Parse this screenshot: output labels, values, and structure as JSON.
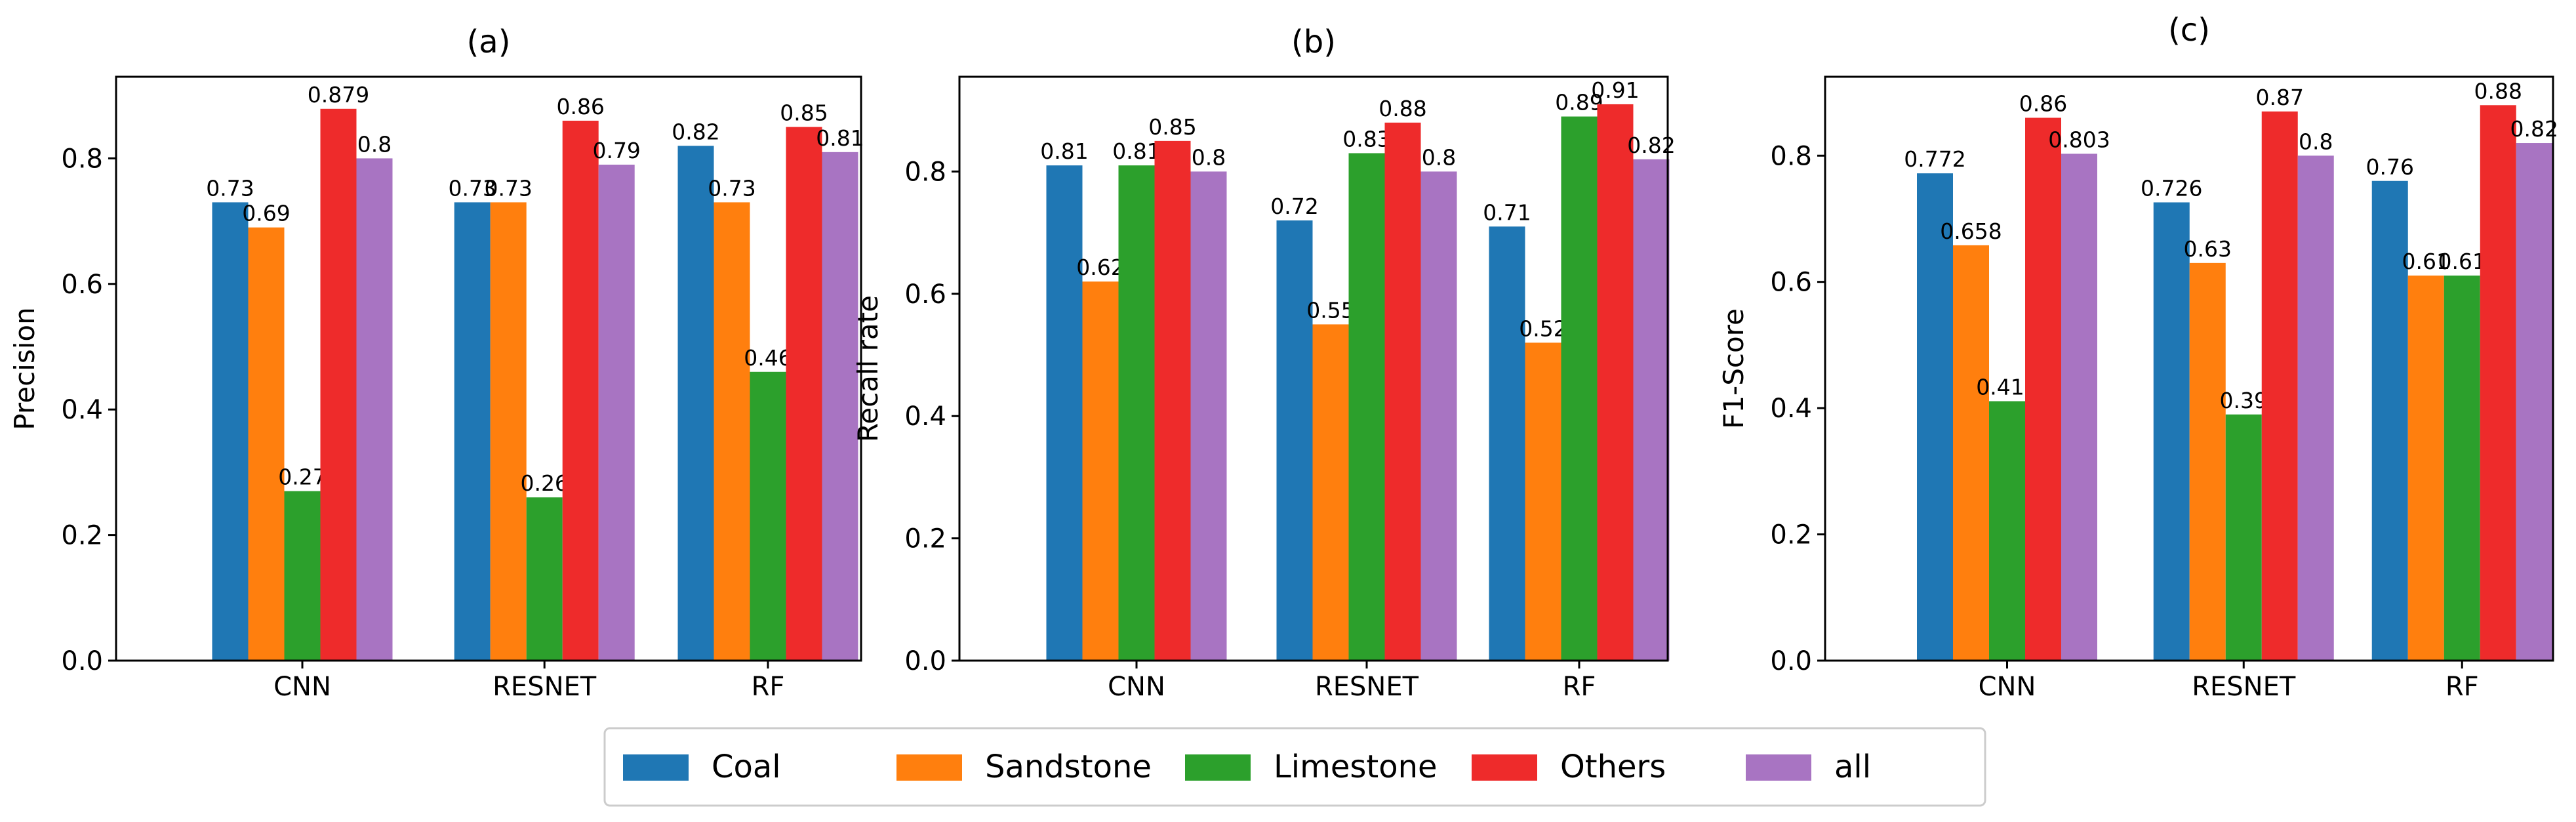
{
  "legend": {
    "entries": [
      {
        "label": "Coal",
        "color": "#1f77b4"
      },
      {
        "label": "Sandstone",
        "color": "#ff7f0e"
      },
      {
        "label": "Limestone",
        "color": "#2ca02c"
      },
      {
        "label": "Others",
        "color": "#ee2b2b"
      },
      {
        "label": "all",
        "color": "#a874c2"
      }
    ]
  },
  "chart_data": [
    {
      "type": "bar",
      "title": "(a)",
      "xlabel": "",
      "ylabel": "Precision",
      "ylim": [
        0,
        0.93
      ],
      "yticks": [
        "0.0",
        "0.2",
        "0.4",
        "0.6",
        "0.8"
      ],
      "categories": [
        "CNN",
        "RESNET",
        "RF"
      ],
      "series": [
        {
          "name": "Coal",
          "values": [
            0.73,
            0.73,
            0.82
          ],
          "labels": [
            "0.73",
            "0.73",
            "0.82"
          ]
        },
        {
          "name": "Sandstone",
          "values": [
            0.69,
            0.73,
            0.73
          ],
          "labels": [
            "0.69",
            "0.73",
            "0.73"
          ]
        },
        {
          "name": "Limestone",
          "values": [
            0.27,
            0.26,
            0.46
          ],
          "labels": [
            "0.27",
            "0.26",
            "0.46"
          ]
        },
        {
          "name": "Others",
          "values": [
            0.879,
            0.86,
            0.85
          ],
          "labels": [
            "0.879",
            "0.86",
            "0.85"
          ]
        },
        {
          "name": "all",
          "values": [
            0.8,
            0.79,
            0.81
          ],
          "labels": [
            "0.8",
            "0.79",
            "0.81"
          ]
        }
      ]
    },
    {
      "type": "bar",
      "title": "(b)",
      "xlabel": "",
      "ylabel": "Recall rate",
      "ylim": [
        0,
        0.955
      ],
      "yticks": [
        "0.0",
        "0.2",
        "0.4",
        "0.6",
        "0.8"
      ],
      "categories": [
        "CNN",
        "RESNET",
        "RF"
      ],
      "series": [
        {
          "name": "Coal",
          "values": [
            0.81,
            0.72,
            0.71
          ],
          "labels": [
            "0.81",
            "0.72",
            "0.71"
          ]
        },
        {
          "name": "Sandstone",
          "values": [
            0.62,
            0.55,
            0.52
          ],
          "labels": [
            "0.62",
            "0.55",
            "0.52"
          ]
        },
        {
          "name": "Limestone",
          "values": [
            0.81,
            0.83,
            0.89
          ],
          "labels": [
            "0.81",
            "0.83",
            "0.89"
          ]
        },
        {
          "name": "Others",
          "values": [
            0.85,
            0.88,
            0.91
          ],
          "labels": [
            "0.85",
            "0.88",
            "0.91"
          ]
        },
        {
          "name": "all",
          "values": [
            0.8,
            0.8,
            0.82
          ],
          "labels": [
            "0.8",
            "0.8",
            "0.82"
          ]
        }
      ]
    },
    {
      "type": "bar",
      "title": "(c)",
      "xlabel": "",
      "ylabel": "F1-Score",
      "ylim": [
        0,
        0.925
      ],
      "yticks": [
        "0.0",
        "0.2",
        "0.4",
        "0.6",
        "0.8"
      ],
      "categories": [
        "CNN",
        "RESNET",
        "RF"
      ],
      "series": [
        {
          "name": "Coal",
          "values": [
            0.772,
            0.726,
            0.76
          ],
          "labels": [
            "0.772",
            "0.726",
            "0.76"
          ]
        },
        {
          "name": "Sandstone",
          "values": [
            0.658,
            0.63,
            0.61
          ],
          "labels": [
            "0.658",
            "0.63",
            "0.61"
          ]
        },
        {
          "name": "Limestone",
          "values": [
            0.411,
            0.39,
            0.61
          ],
          "labels": [
            "0.411",
            "0.39",
            "0.61"
          ]
        },
        {
          "name": "Others",
          "values": [
            0.86,
            0.87,
            0.88
          ],
          "labels": [
            "0.86",
            "0.87",
            "0.88"
          ]
        },
        {
          "name": "all",
          "values": [
            0.803,
            0.8,
            0.82
          ],
          "labels": [
            "0.803",
            "0.8",
            "0.82"
          ]
        }
      ]
    }
  ]
}
